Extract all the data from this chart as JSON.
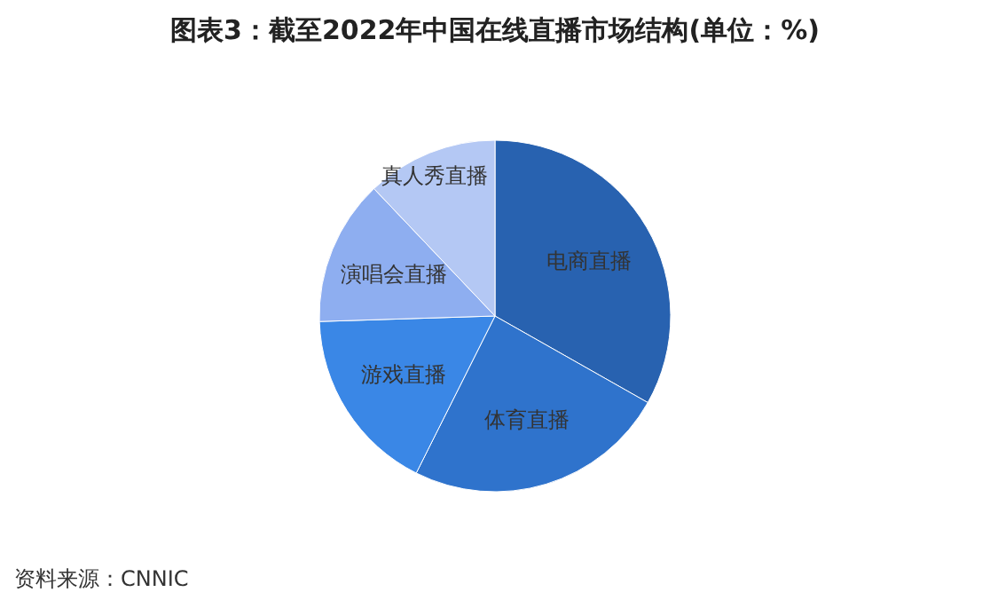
{
  "chart_data": {
    "type": "pie",
    "title": "图表3：截至2022年中国在线直播市场结构(单位：%)",
    "categories": [
      "电商直播",
      "体育直播",
      "游戏直播",
      "演唱会直播",
      "真人秀直播"
    ],
    "values": [
      33.2,
      24.2,
      17.1,
      13.4,
      12.1
    ],
    "colors": [
      "#2862b0",
      "#2f73cc",
      "#3a87e6",
      "#8eaef0",
      "#b4c8f4"
    ],
    "annotations": [
      "资料来源：CNNIC"
    ],
    "legend": false
  }
}
